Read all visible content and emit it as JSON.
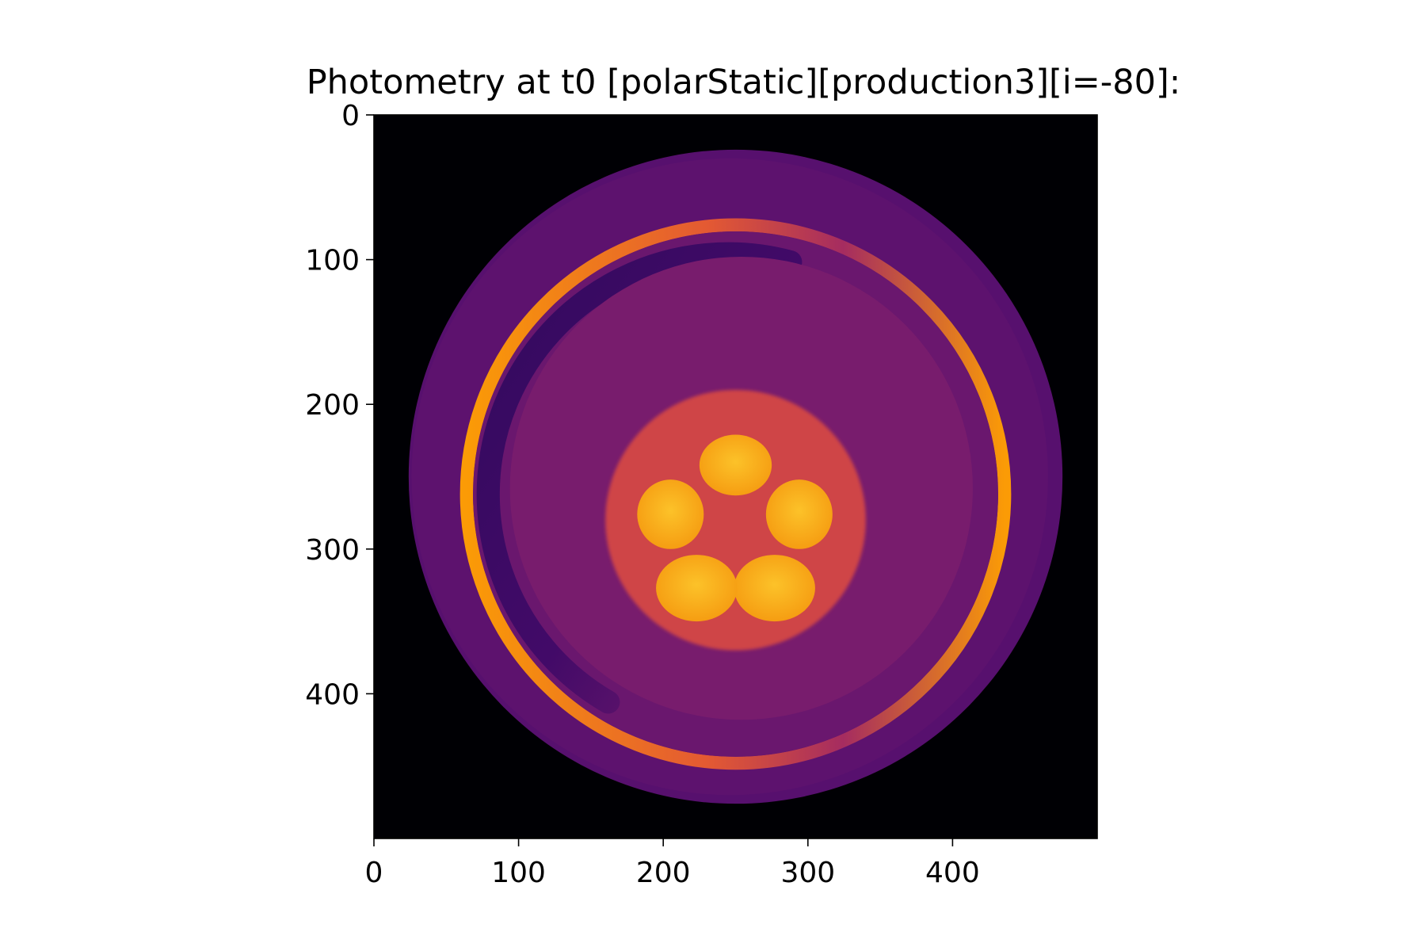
{
  "chart_data": {
    "type": "heatmap",
    "title": "Photometry at t0 [polarStatic][production3][i=-80]:",
    "xlabel": "",
    "ylabel": "",
    "colormap": "inferno",
    "background_color": "#000004",
    "image_size": [
      500,
      500
    ],
    "xlim": [
      0,
      500
    ],
    "ylim": [
      500,
      0
    ],
    "grid": false,
    "legend": "none",
    "x_ticks": [
      0,
      100,
      200,
      300,
      400
    ],
    "x_tick_labels": [
      "0",
      "100",
      "200",
      "300",
      "400"
    ],
    "y_ticks": [
      0,
      100,
      200,
      300,
      400
    ],
    "y_tick_labels": [
      "0",
      "100",
      "200",
      "300",
      "400"
    ],
    "features": {
      "outer_disk": {
        "center": [
          250,
          250
        ],
        "radius": 226,
        "color": "#57106e"
      },
      "bright_ring": {
        "center": [
          250,
          262
        ],
        "radius": 186,
        "color_bright": "#fb9b06",
        "color_dim": "#a52c60"
      },
      "inner_disk": {
        "center": [
          250,
          262
        ],
        "radius": 160,
        "color": "#781c6d"
      },
      "dark_arc": {
        "center": [
          245,
          262
        ],
        "radius": 166,
        "color": "#320a5e"
      },
      "core_disk": {
        "center": [
          250,
          280
        ],
        "radius": 90,
        "color": "#cf4446"
      },
      "lobes": [
        {
          "center": [
            250,
            242
          ],
          "rx": 25,
          "ry": 21,
          "color": "#fbb61a"
        },
        {
          "center": [
            294,
            276
          ],
          "rx": 23,
          "ry": 24,
          "color": "#fbb61a"
        },
        {
          "center": [
            277,
            327
          ],
          "rx": 28,
          "ry": 23,
          "color": "#f8a00e"
        },
        {
          "center": [
            223,
            327
          ],
          "rx": 28,
          "ry": 23,
          "color": "#f8a00e"
        },
        {
          "center": [
            205,
            276
          ],
          "rx": 23,
          "ry": 24,
          "color": "#fbb61a"
        }
      ]
    }
  }
}
